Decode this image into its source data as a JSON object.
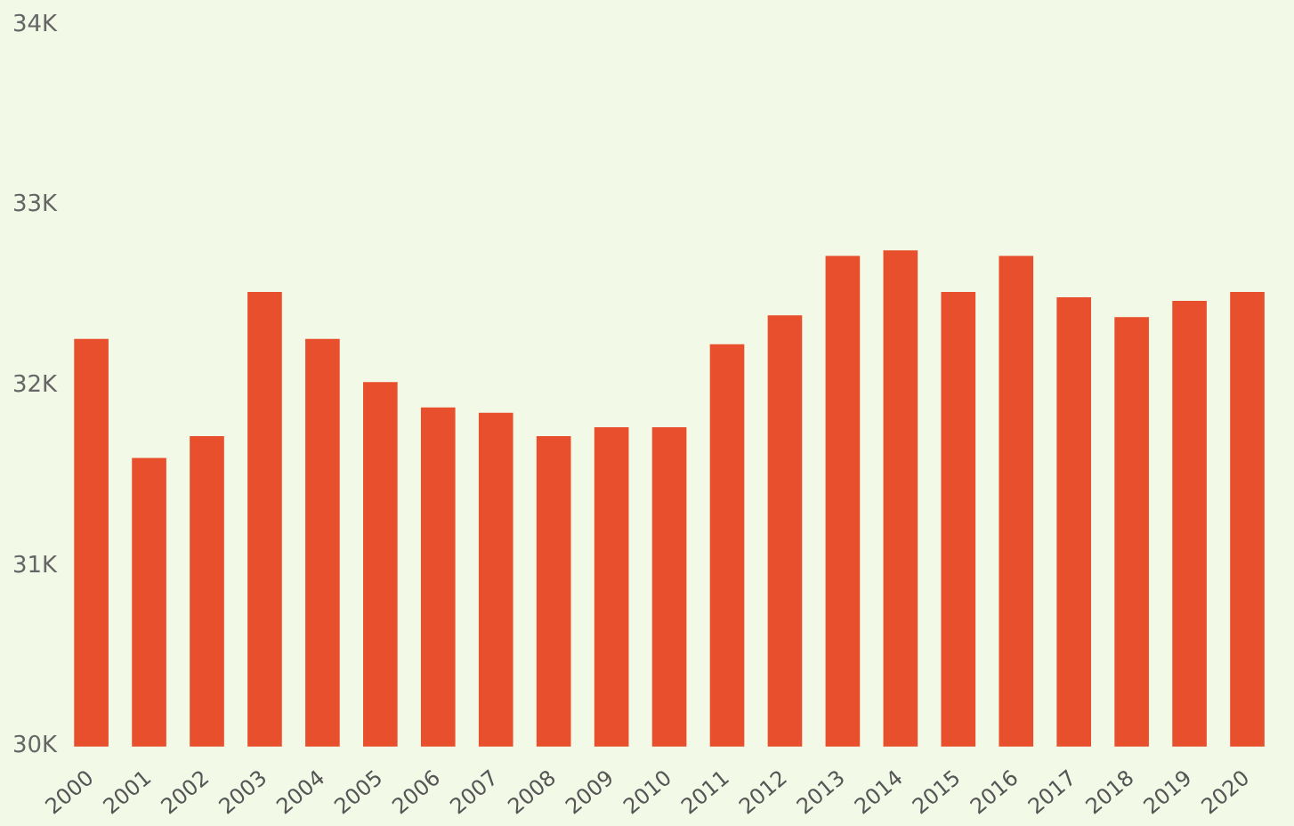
{
  "chart_data": {
    "type": "bar",
    "categories": [
      "2000",
      "2001",
      "2002",
      "2003",
      "2004",
      "2005",
      "2006",
      "2007",
      "2008",
      "2009",
      "2010",
      "2011",
      "2012",
      "2013",
      "2014",
      "2015",
      "2016",
      "2017",
      "2018",
      "2019",
      "2020"
    ],
    "values": [
      32260,
      31600,
      31720,
      32520,
      32260,
      32020,
      31880,
      31850,
      31720,
      31770,
      31770,
      32230,
      32390,
      32720,
      32750,
      32520,
      32720,
      32490,
      32380,
      32470,
      32520
    ],
    "color": "#e8502d",
    "ylim": [
      30000,
      34000
    ],
    "yticks": [
      {
        "value": 30000,
        "label": "30K"
      },
      {
        "value": 31000,
        "label": "31K"
      },
      {
        "value": 32000,
        "label": "32K"
      },
      {
        "value": 33000,
        "label": "33K"
      },
      {
        "value": 34000,
        "label": "34K"
      }
    ],
    "grid": false
  }
}
